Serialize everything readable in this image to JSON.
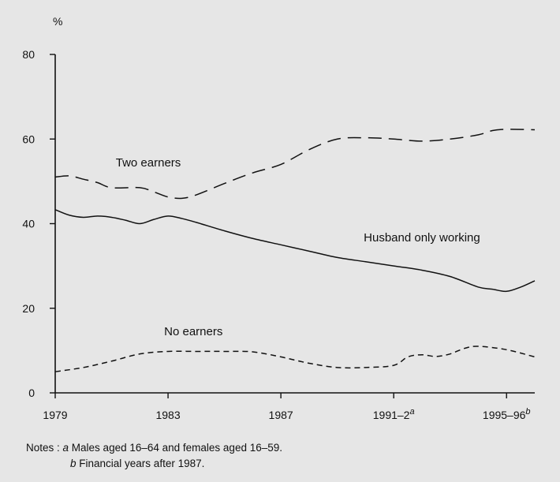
{
  "chart_data": {
    "type": "line",
    "title": "",
    "ylabel": "%",
    "xlabel": "",
    "ylim": [
      0,
      80
    ],
    "xlim": [
      1979,
      1996
    ],
    "grid": false,
    "y_ticks": [
      {
        "value": 0,
        "label": "0"
      },
      {
        "value": 20,
        "label": "20"
      },
      {
        "value": 40,
        "label": "40"
      },
      {
        "value": 60,
        "label": "60"
      },
      {
        "value": 80,
        "label": "80"
      }
    ],
    "x_ticks": [
      {
        "value": 1979,
        "label": "1979",
        "sup": ""
      },
      {
        "value": 1983,
        "label": "1983",
        "sup": ""
      },
      {
        "value": 1987,
        "label": "1987",
        "sup": ""
      },
      {
        "value": 1991,
        "label": "1991–2",
        "sup": "a"
      },
      {
        "value": 1995,
        "label": "1995–96",
        "sup": "b"
      }
    ],
    "series": [
      {
        "name": "Two earners",
        "style": "long-dash",
        "x": [
          1979,
          1979.5,
          1980,
          1980.5,
          1981,
          1982,
          1982.5,
          1983,
          1983.5,
          1984,
          1985,
          1986,
          1987,
          1988,
          1989,
          1990,
          1991,
          1992,
          1993,
          1994,
          1994.5,
          1995,
          1996
        ],
        "y": [
          51.0,
          51.3,
          50.5,
          49.7,
          48.5,
          48.5,
          47.5,
          46.3,
          46.0,
          46.8,
          49.5,
          52.0,
          54.0,
          57.5,
          60.0,
          60.3,
          60.0,
          59.5,
          60.0,
          61.0,
          62.0,
          62.3,
          62.2
        ]
      },
      {
        "name": "Husband only working",
        "style": "solid",
        "x": [
          1979,
          1979.5,
          1980,
          1980.5,
          1981,
          1981.5,
          1982,
          1982.5,
          1983,
          1983.5,
          1984,
          1985,
          1986,
          1987,
          1988,
          1989,
          1990,
          1991,
          1992,
          1993,
          1994,
          1994.5,
          1995,
          1995.5,
          1996
        ],
        "y": [
          43.3,
          42.0,
          41.5,
          41.8,
          41.5,
          40.8,
          40.0,
          41.0,
          41.8,
          41.2,
          40.3,
          38.3,
          36.5,
          35.0,
          33.5,
          32.0,
          31.0,
          30.0,
          29.0,
          27.5,
          25.0,
          24.5,
          24.0,
          25.0,
          26.5
        ]
      },
      {
        "name": "No earners",
        "style": "short-dash",
        "x": [
          1979,
          1980,
          1981,
          1982,
          1983,
          1984,
          1985,
          1986,
          1987,
          1988,
          1989,
          1990,
          1991,
          1991.5,
          1992,
          1992.5,
          1993,
          1993.5,
          1994,
          1995,
          1996
        ],
        "y": [
          5.0,
          6.0,
          7.5,
          9.2,
          9.8,
          9.8,
          9.8,
          9.7,
          8.5,
          7.0,
          6.0,
          6.0,
          6.5,
          8.5,
          9.0,
          8.6,
          9.2,
          10.5,
          11.0,
          10.2,
          8.5
        ]
      }
    ],
    "annotations": [
      {
        "text": "Two earners",
        "x": 1982.3,
        "y": 53.5
      },
      {
        "text": "Husband only working",
        "x": 1992.0,
        "y": 35.8
      },
      {
        "text": "No earners",
        "x": 1983.9,
        "y": 13.6
      }
    ]
  },
  "notes": {
    "prefix": "Notes : ",
    "a_marker": "a",
    "a_text": " Males aged 16–64 and females aged 16–59.",
    "b_marker": "b",
    "b_text": " Financial years after 1987."
  }
}
